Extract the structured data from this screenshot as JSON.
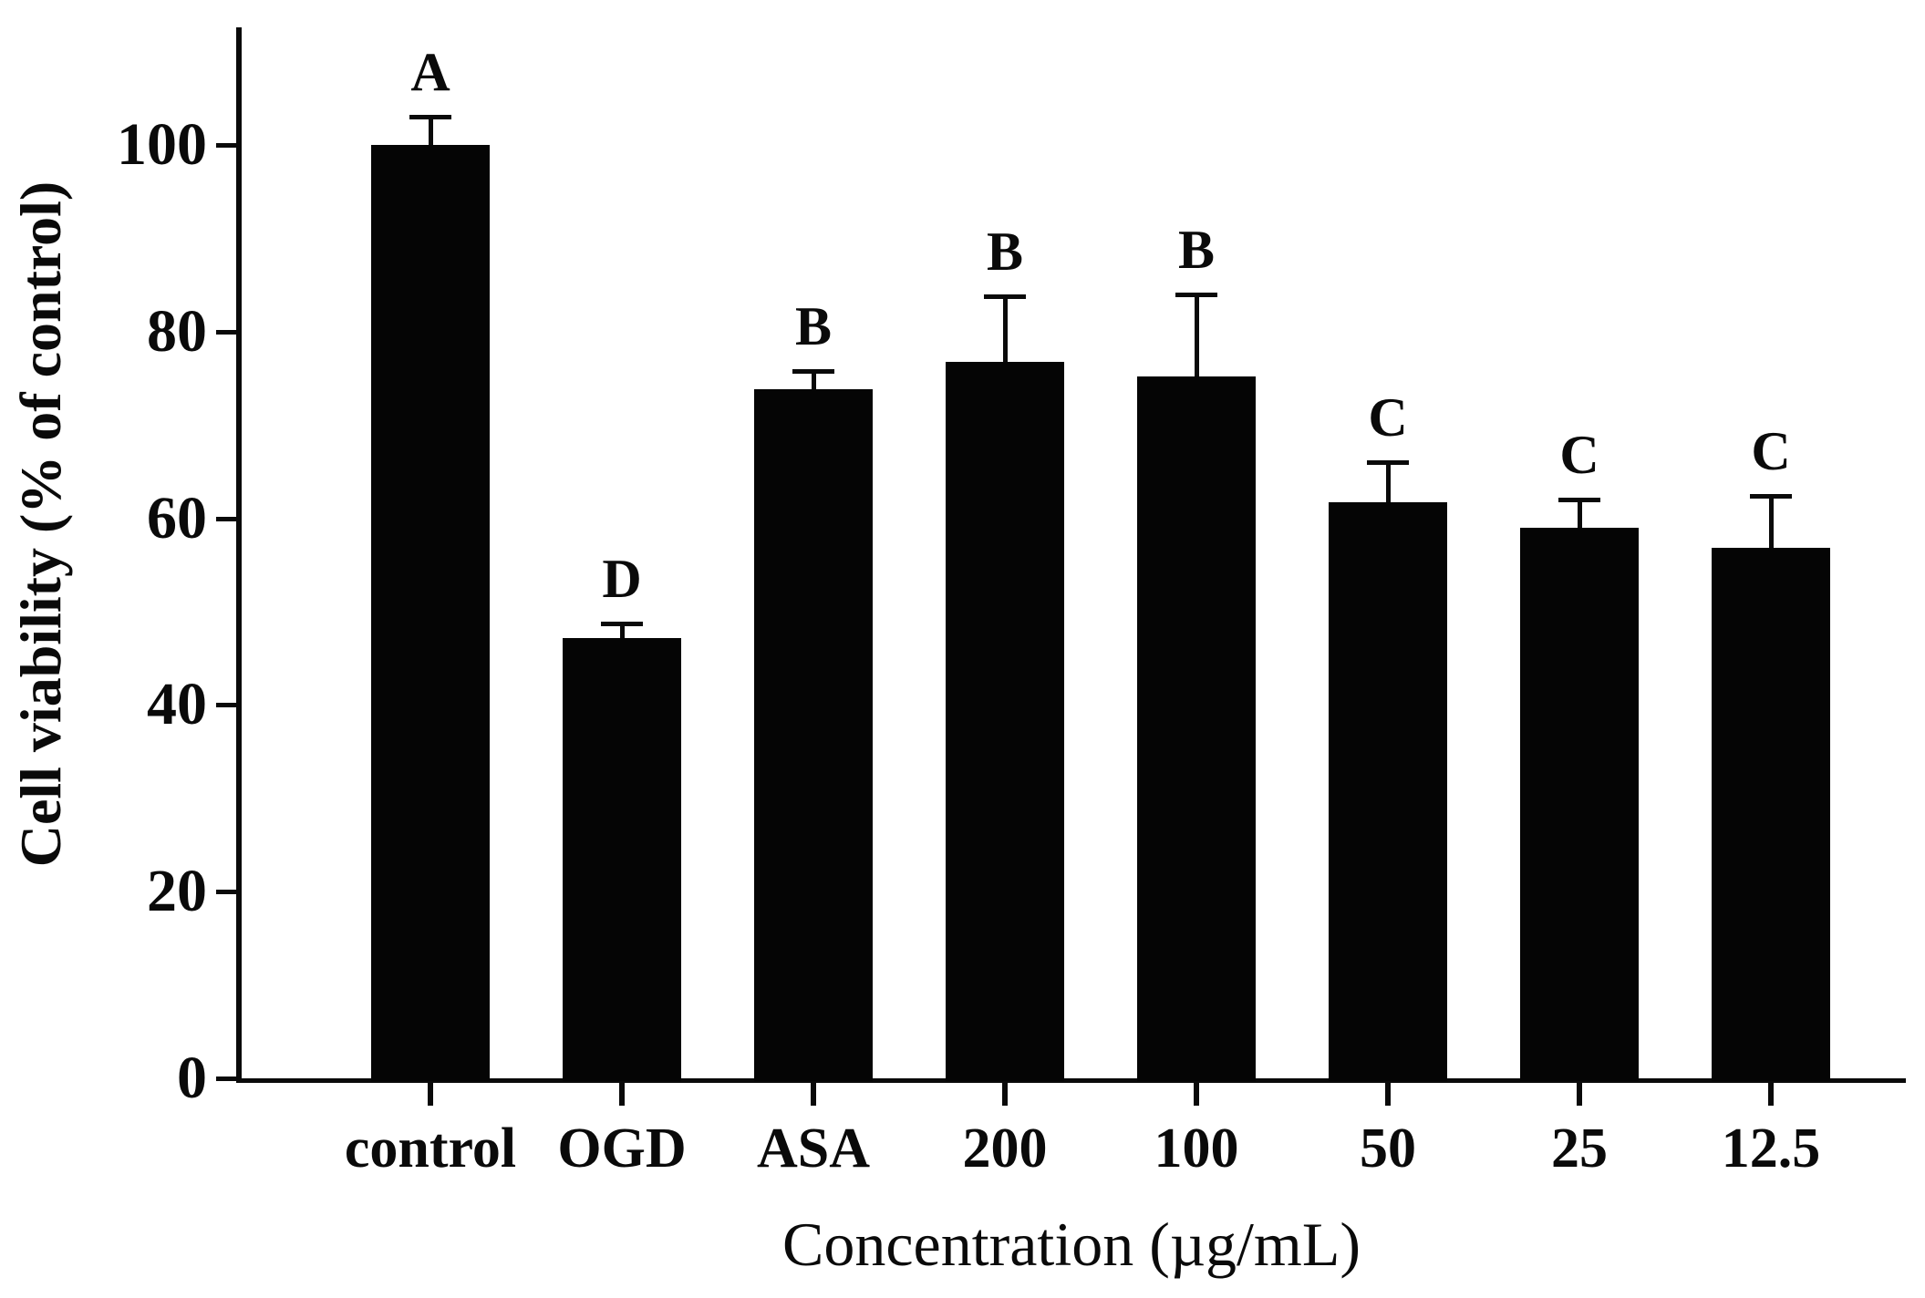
{
  "chart_data": {
    "type": "bar",
    "title": "",
    "xlabel": "Concentration (µg/mL)",
    "ylabel": "Cell viability (% of control)",
    "categories": [
      "control",
      "OGD",
      "ASA",
      "200",
      "100",
      "50",
      "25",
      "12.5"
    ],
    "values": [
      100,
      47.2,
      73.8,
      76.8,
      75.2,
      61.7,
      59,
      56.8
    ],
    "errors_plus": [
      3,
      1.5,
      2,
      7,
      8.8,
      4.3,
      3,
      5.6
    ],
    "significance_letters": [
      "A",
      "D",
      "B",
      "B",
      "B",
      "C",
      "C",
      "C"
    ],
    "yticks": [
      0,
      20,
      40,
      60,
      80,
      100
    ],
    "ylim": [
      0,
      112
    ],
    "bar_color": "#050505",
    "axis_color": "#0a0a0a",
    "background_color": "#ffffff",
    "grid": false,
    "legend": null,
    "error_bar_direction": "upper-only"
  }
}
